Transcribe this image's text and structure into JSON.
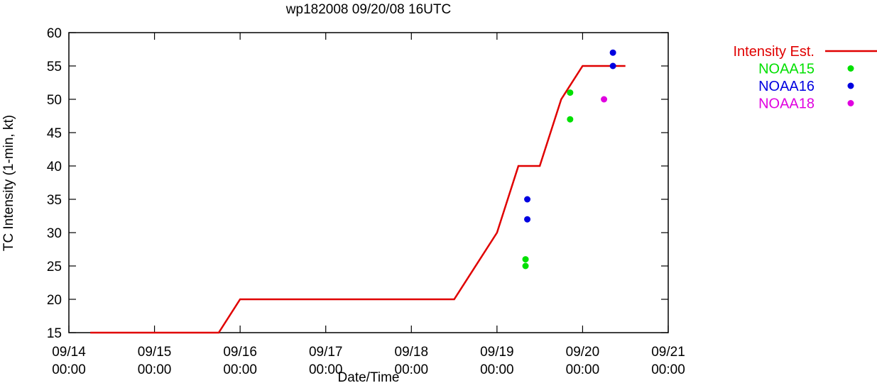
{
  "chart_data": {
    "type": "line",
    "title": "wp182008 09/20/08 16UTC",
    "xlabel": "Date/Time",
    "ylabel": "TC Intensity (1-min, kt)",
    "ylim": [
      15,
      60
    ],
    "yticks": [
      15,
      20,
      25,
      30,
      35,
      40,
      45,
      50,
      55,
      60
    ],
    "xlim": [
      "2008-09-14T00:00",
      "2008-09-21T00:00"
    ],
    "xticks": [
      {
        "at": "2008-09-14T00:00",
        "date": "09/14",
        "time": "00:00"
      },
      {
        "at": "2008-09-15T00:00",
        "date": "09/15",
        "time": "00:00"
      },
      {
        "at": "2008-09-16T00:00",
        "date": "09/16",
        "time": "00:00"
      },
      {
        "at": "2008-09-17T00:00",
        "date": "09/17",
        "time": "00:00"
      },
      {
        "at": "2008-09-18T00:00",
        "date": "09/18",
        "time": "00:00"
      },
      {
        "at": "2008-09-19T00:00",
        "date": "09/19",
        "time": "00:00"
      },
      {
        "at": "2008-09-20T00:00",
        "date": "09/20",
        "time": "00:00"
      },
      {
        "at": "2008-09-21T00:00",
        "date": "09/21",
        "time": "00:00"
      }
    ],
    "grid": false,
    "legend_position": "top-right, outside plot",
    "series": [
      {
        "name": "Intensity Est.",
        "type": "line",
        "color": "#e00000",
        "points": [
          {
            "x": "2008-09-14T06:00",
            "y": 15
          },
          {
            "x": "2008-09-15T18:00",
            "y": 15
          },
          {
            "x": "2008-09-16T00:00",
            "y": 20
          },
          {
            "x": "2008-09-18T12:00",
            "y": 20
          },
          {
            "x": "2008-09-19T00:00",
            "y": 30
          },
          {
            "x": "2008-09-19T06:00",
            "y": 40
          },
          {
            "x": "2008-09-19T12:00",
            "y": 40
          },
          {
            "x": "2008-09-19T18:00",
            "y": 50
          },
          {
            "x": "2008-09-20T00:00",
            "y": 55
          },
          {
            "x": "2008-09-20T12:00",
            "y": 55
          }
        ]
      },
      {
        "name": "NOAA15",
        "type": "scatter",
        "color": "#00e000",
        "points": [
          {
            "x": "2008-09-19T08:00",
            "y": 26
          },
          {
            "x": "2008-09-19T08:00",
            "y": 25
          },
          {
            "x": "2008-09-19T20:30",
            "y": 51
          },
          {
            "x": "2008-09-19T20:30",
            "y": 47
          }
        ]
      },
      {
        "name": "NOAA16",
        "type": "scatter",
        "color": "#0000e0",
        "points": [
          {
            "x": "2008-09-19T08:30",
            "y": 35
          },
          {
            "x": "2008-09-19T08:30",
            "y": 32
          },
          {
            "x": "2008-09-20T08:30",
            "y": 57
          },
          {
            "x": "2008-09-20T08:30",
            "y": 55
          }
        ]
      },
      {
        "name": "NOAA18",
        "type": "scatter",
        "color": "#e000e0",
        "points": [
          {
            "x": "2008-09-20T06:00",
            "y": 50
          }
        ]
      }
    ]
  }
}
